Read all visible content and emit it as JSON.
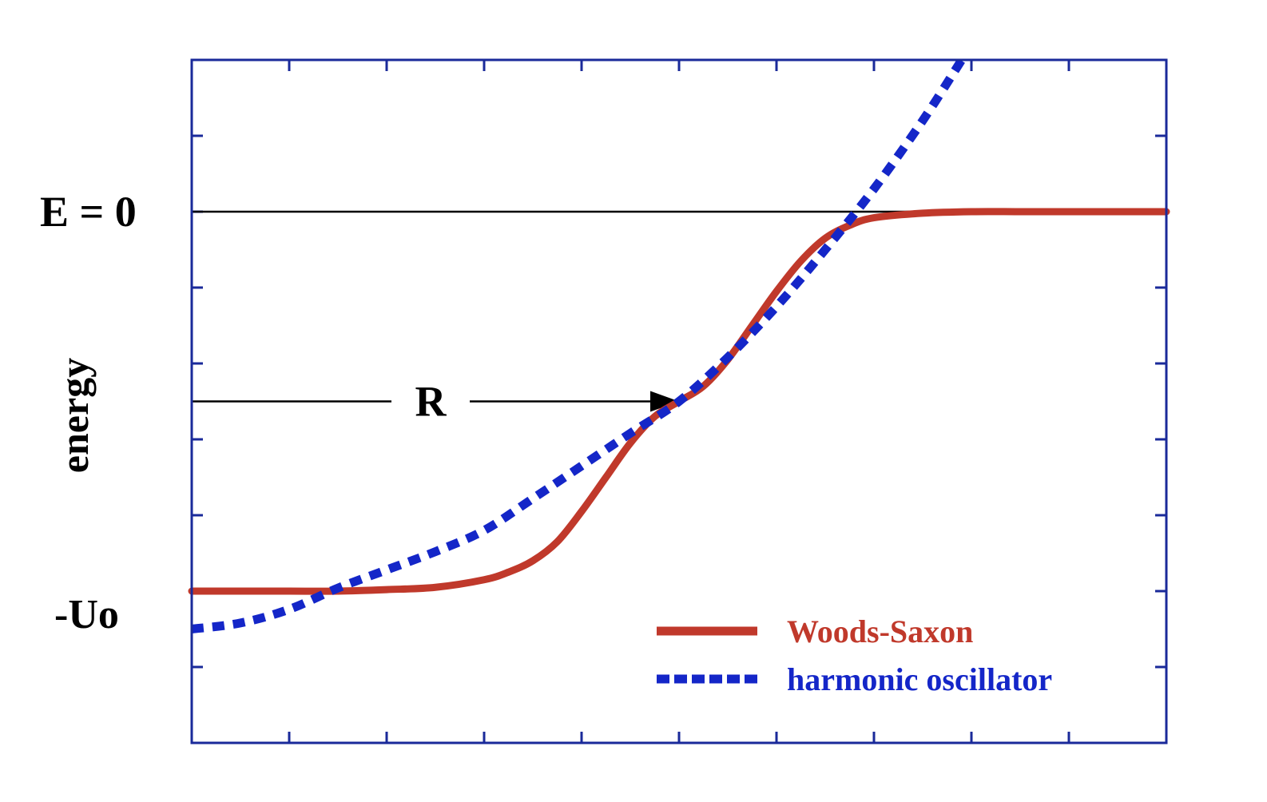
{
  "chart_data": {
    "type": "line",
    "title": "",
    "xlabel": "",
    "ylabel": "energy",
    "xlim": [
      0,
      10
    ],
    "ylim": [
      -7,
      2
    ],
    "grid": false,
    "x_ticks": [
      0,
      1,
      2,
      3,
      4,
      5,
      6,
      7,
      8,
      9,
      10
    ],
    "y_ticks": [
      -7,
      -6,
      -5,
      -4,
      -3,
      -2,
      -1,
      0,
      1,
      2
    ],
    "zero_label": "E = 0",
    "depth_label": "-Uo",
    "radius_label": "R",
    "radius_value": 5,
    "well_depth": -5,
    "oscillator_min": -5.5,
    "reference_lines": [
      {
        "name": "E = 0",
        "y": 0
      },
      {
        "name": "R",
        "y": -2.5
      }
    ],
    "series": [
      {
        "name": "Woods-Saxon",
        "color": "#c0392b",
        "style": "solid",
        "x": [
          0,
          0.5,
          1,
          1.5,
          2,
          2.5,
          3,
          3.25,
          3.5,
          3.75,
          4,
          4.25,
          4.5,
          4.75,
          5,
          5.25,
          5.5,
          5.75,
          6,
          6.25,
          6.5,
          6.75,
          7,
          7.5,
          8,
          8.5,
          9,
          9.5,
          10
        ],
        "y": [
          -5.0,
          -5.0,
          -5.0,
          -5.0,
          -4.98,
          -4.95,
          -4.85,
          -4.75,
          -4.6,
          -4.35,
          -3.95,
          -3.5,
          -3.05,
          -2.7,
          -2.5,
          -2.3,
          -1.95,
          -1.5,
          -1.05,
          -0.65,
          -0.35,
          -0.18,
          -0.08,
          -0.02,
          0,
          0,
          0,
          0,
          0
        ]
      },
      {
        "name": "harmonic oscillator",
        "color": "#1426c8",
        "style": "dashed",
        "x": [
          0,
          0.5,
          1,
          1.5,
          2,
          2.5,
          3,
          3.5,
          4,
          4.5,
          5,
          5.5,
          6,
          6.5,
          7,
          7.5,
          7.9
        ],
        "y": [
          -5.5,
          -5.42,
          -5.24,
          -4.96,
          -4.72,
          -4.48,
          -4.2,
          -3.78,
          -3.35,
          -2.92,
          -2.5,
          -1.92,
          -1.25,
          -0.5,
          0.3,
          1.2,
          2.0
        ]
      }
    ],
    "legend": {
      "position": "bottom-right",
      "entries": [
        "Woods-Saxon",
        "harmonic oscillator"
      ]
    },
    "axis_color": "#1a2a9a"
  }
}
